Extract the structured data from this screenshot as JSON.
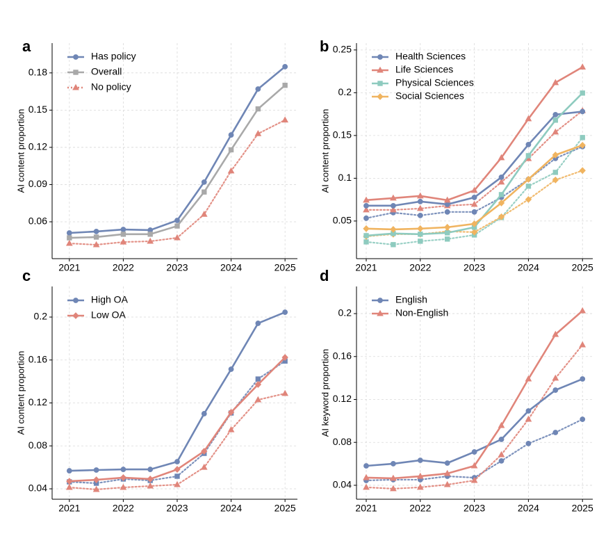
{
  "chart_data": [
    {
      "type": "line",
      "panel": "a",
      "ylabel": "AI content proportion",
      "x": [
        2021,
        2021.5,
        2022,
        2022.5,
        2023,
        2023.5,
        2024,
        2024.5,
        2025
      ],
      "xlim": [
        2020.68,
        2025.23
      ],
      "xticks": [
        2021,
        2022,
        2023,
        2024,
        2025
      ],
      "ylim": [
        0.0303,
        0.204
      ],
      "yticks": [
        0.06,
        0.09,
        0.12,
        0.15,
        0.18
      ],
      "grid": true,
      "legend": "upper left",
      "series": [
        {
          "name": "Has policy",
          "color": "#6f86b5",
          "marker": "circle",
          "style": "solid",
          "values": [
            0.051,
            0.0522,
            0.0538,
            0.0533,
            0.0611,
            0.092,
            0.13,
            0.167,
            0.185
          ]
        },
        {
          "name": "Overall",
          "color": "#a9a9a9",
          "marker": "square",
          "style": "solid",
          "values": [
            0.0471,
            0.0477,
            0.05,
            0.05,
            0.0566,
            0.084,
            0.118,
            0.151,
            0.17
          ]
        },
        {
          "name": "No policy",
          "color": "#e0857a",
          "marker": "triangle",
          "style": "dotted",
          "values": [
            0.0426,
            0.0415,
            0.0437,
            0.0443,
            0.0471,
            0.066,
            0.101,
            0.131,
            0.142
          ]
        }
      ]
    },
    {
      "type": "line",
      "panel": "b",
      "ylabel": "AI content proportion",
      "x": [
        2021,
        2021.5,
        2022,
        2022.5,
        2023,
        2023.5,
        2024,
        2024.5,
        2025
      ],
      "xlim": [
        2020.82,
        2025.19
      ],
      "xticks": [
        2021,
        2022,
        2023,
        2024,
        2025
      ],
      "ylim": [
        0.006,
        0.258
      ],
      "yticks": [
        0.05,
        0.1,
        0.15,
        0.2,
        0.25
      ],
      "grid": true,
      "legend": "upper left",
      "series": [
        {
          "name": "Health Sciences",
          "color": "#6f86b5",
          "marker": "circle",
          "style": "solid",
          "values": [
            0.0679,
            0.0679,
            0.0728,
            0.0695,
            0.0776,
            0.1012,
            0.1394,
            0.1744,
            0.178
          ]
        },
        {
          "name": "Life Sciences",
          "color": "#e0857a",
          "marker": "triangle",
          "style": "solid",
          "values": [
            0.0744,
            0.0768,
            0.0793,
            0.0744,
            0.0858,
            0.124,
            0.1695,
            0.2118,
            0.23
          ]
        },
        {
          "name": "Physical Sciences",
          "color": "#8ecbbf",
          "marker": "square",
          "style": "solid",
          "values": [
            0.0329,
            0.0354,
            0.0346,
            0.0362,
            0.0427,
            0.0809,
            0.1264,
            0.1679,
            0.1996
          ]
        },
        {
          "name": "Social Sciences",
          "color": "#f0b460",
          "marker": "diamond",
          "style": "solid",
          "values": [
            0.0411,
            0.0402,
            0.0411,
            0.0427,
            0.0467,
            0.0711,
            0.0988,
            0.1272,
            0.1386
          ]
        },
        {
          "color": "#6f86b5",
          "marker": "circle",
          "style": "dotted",
          "values": [
            0.0533,
            0.0598,
            0.0565,
            0.0606,
            0.0606,
            0.0776,
            0.0988,
            0.1232,
            0.137
          ]
        },
        {
          "color": "#e0857a",
          "marker": "triangle",
          "style": "dotted",
          "values": [
            0.063,
            0.063,
            0.0646,
            0.0679,
            0.0695,
            0.0955,
            0.123,
            0.154,
            0.179
          ]
        },
        {
          "color": "#8ecbbf",
          "marker": "square",
          "style": "dotted",
          "values": [
            0.0256,
            0.0224,
            0.0264,
            0.0289,
            0.0337,
            0.0541,
            0.0907,
            0.1069,
            0.1476
          ]
        },
        {
          "color": "#f0b460",
          "marker": "diamond",
          "style": "dotted",
          "values": [
            0.0321,
            0.0346,
            0.0346,
            0.0378,
            0.037,
            0.0549,
            0.0752,
            0.098,
            0.109
          ]
        }
      ]
    },
    {
      "type": "line",
      "panel": "c",
      "ylabel": "AI content proportion",
      "x": [
        2021,
        2021.5,
        2022,
        2022.5,
        2023,
        2023.5,
        2024,
        2024.5,
        2025
      ],
      "xlim": [
        2020.68,
        2025.23
      ],
      "xticks": [
        2021,
        2022,
        2023,
        2024,
        2025
      ],
      "ylim": [
        0.0303,
        0.2285
      ],
      "yticks": [
        0.04,
        0.08,
        0.12,
        0.16,
        0.2
      ],
      "grid": true,
      "legend": "upper left",
      "series": [
        {
          "name": "High OA",
          "color": "#6f86b5",
          "marker": "circle",
          "style": "solid",
          "values": [
            0.0568,
            0.0575,
            0.0581,
            0.0581,
            0.0653,
            0.11,
            0.1514,
            0.1942,
            0.2045
          ]
        },
        {
          "name": "Low OA",
          "color": "#e0857a",
          "marker": "diamond",
          "style": "solid",
          "values": [
            0.0471,
            0.0484,
            0.0504,
            0.0491,
            0.0581,
            0.075,
            0.1113,
            0.1372,
            0.1624
          ]
        },
        {
          "color": "#6f86b5",
          "marker": "square",
          "style": "dotted",
          "values": [
            0.0465,
            0.0452,
            0.0491,
            0.0478,
            0.0517,
            0.073,
            0.1106,
            0.1423,
            0.159
          ]
        },
        {
          "color": "#e0857a",
          "marker": "triangle",
          "style": "dotted",
          "values": [
            0.0413,
            0.0394,
            0.0413,
            0.0426,
            0.0439,
            0.06,
            0.095,
            0.1229,
            0.1288
          ]
        }
      ]
    },
    {
      "type": "line",
      "panel": "d",
      "ylabel": "AI keyword proportion",
      "x": [
        2021,
        2021.5,
        2022,
        2022.5,
        2023,
        2023.5,
        2024,
        2024.5,
        2025
      ],
      "xlim": [
        2020.82,
        2025.19
      ],
      "xticks": [
        2021,
        2022,
        2023,
        2024,
        2025
      ],
      "ylim": [
        0.027,
        0.2253
      ],
      "yticks": [
        0.04,
        0.08,
        0.12,
        0.16,
        0.2
      ],
      "grid": true,
      "legend": "upper left",
      "series": [
        {
          "name": "English",
          "color": "#6f86b5",
          "marker": "circle",
          "style": "solid",
          "values": [
            0.0581,
            0.0601,
            0.0633,
            0.0607,
            0.0711,
            0.0828,
            0.1093,
            0.1287,
            0.1391
          ]
        },
        {
          "name": "Non-English",
          "color": "#e0857a",
          "marker": "triangle",
          "style": "solid",
          "values": [
            0.0471,
            0.0465,
            0.0484,
            0.051,
            0.0581,
            0.0957,
            0.1391,
            0.1806,
            0.2026
          ]
        },
        {
          "color": "#6f86b5",
          "marker": "circle",
          "style": "dotted",
          "values": [
            0.0445,
            0.0452,
            0.0452,
            0.0484,
            0.0471,
            0.0627,
            0.0789,
            0.0892,
            0.1015
          ]
        },
        {
          "color": "#e0857a",
          "marker": "triangle",
          "style": "dotted",
          "values": [
            0.0381,
            0.0368,
            0.0381,
            0.0406,
            0.0445,
            0.0685,
            0.1015,
            0.1398,
            0.1709
          ]
        }
      ]
    }
  ]
}
